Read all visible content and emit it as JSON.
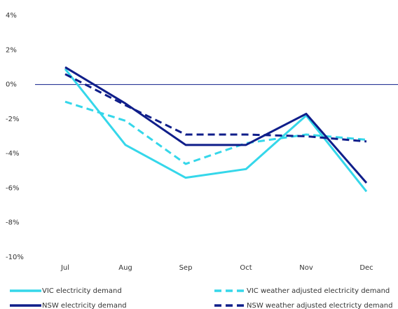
{
  "chart_data": {
    "type": "line",
    "categories": [
      "Jul",
      "Aug",
      "Sep",
      "Oct",
      "Nov",
      "Dec"
    ],
    "series": [
      {
        "name": "VIC electricity demand",
        "color": "#35d7ea",
        "dashed": false,
        "values": [
          0.9,
          -3.5,
          -5.4,
          -4.9,
          -1.8,
          -6.2
        ]
      },
      {
        "name": "VIC weather adjusted electricity demand",
        "color": "#35d7ea",
        "dashed": true,
        "values": [
          -1.0,
          -2.1,
          -4.6,
          -3.4,
          -2.9,
          -3.2
        ]
      },
      {
        "name": "NSW electricity demand",
        "color": "#0f1e8a",
        "dashed": false,
        "values": [
          1.0,
          -1.1,
          -3.5,
          -3.5,
          -1.7,
          -5.7
        ]
      },
      {
        "name": "NSW weather adjusted electricty demand",
        "color": "#0f1e8a",
        "dashed": true,
        "values": [
          0.6,
          -1.2,
          -2.9,
          -2.9,
          -3.0,
          -3.3
        ]
      }
    ],
    "ylim": [
      -10,
      4
    ],
    "yticks": [
      {
        "value": -10,
        "label": "-10%"
      },
      {
        "value": -8,
        "label": "-8%"
      },
      {
        "value": -6,
        "label": "-6%"
      },
      {
        "value": -4,
        "label": "-4%"
      },
      {
        "value": -2,
        "label": "-2%"
      },
      {
        "value": 0,
        "label": "0%"
      },
      {
        "value": 2,
        "label": "2%"
      },
      {
        "value": 4,
        "label": "4%"
      }
    ],
    "zero_line_color": "#0f1e8a",
    "legend": "bottom"
  }
}
